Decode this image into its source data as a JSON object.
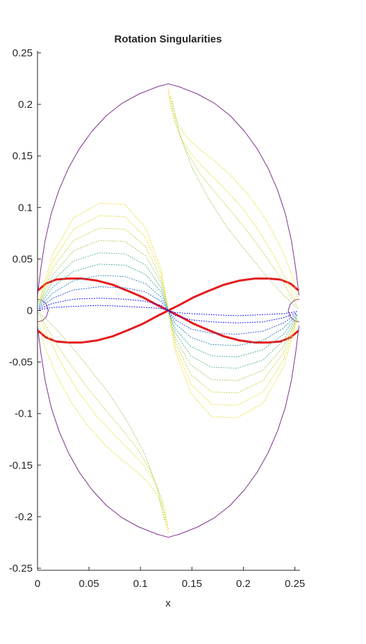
{
  "chart_data": {
    "type": "line",
    "title": "Rotation Singularities",
    "xlabel": "x",
    "ylabel": "",
    "xlim": [
      0,
      0.255
    ],
    "ylim": [
      -0.252,
      0.252
    ],
    "xticks": [
      0,
      0.05,
      0.1,
      0.15,
      0.2,
      0.25
    ],
    "xtick_labels": [
      "0",
      "0.05",
      "0.1",
      "0.15",
      "0.2",
      "0.25"
    ],
    "yticks": [
      -0.25,
      -0.2,
      -0.15,
      -0.1,
      -0.05,
      0,
      0.05,
      0.1,
      0.15,
      0.2,
      0.25
    ],
    "ytick_labels": [
      "-0.25",
      "-0.2",
      "-0.15",
      "-0.1",
      "-0.05",
      "0",
      "0.05",
      "0.1",
      "0.15",
      "0.2",
      "0.25"
    ],
    "grid": false,
    "colors": {
      "boundary": "#7e2f8e",
      "singularity": "#e41a1c",
      "contour_low": "#0000ff",
      "contour_mid": "#3aa8a0",
      "contour_high": "#e8dc28"
    },
    "series": [
      {
        "style": "solid",
        "color": "#7e2f8e",
        "x": [
          0,
          0.0031,
          0.0074,
          0.0133,
          0.0209,
          0.03,
          0.0407,
          0.053,
          0.0668,
          0.082,
          0.0985,
          0.1162,
          0.127,
          0.1378,
          0.1555,
          0.172,
          0.1872,
          0.201,
          0.2133,
          0.224,
          0.2331,
          0.2407,
          0.2466,
          0.2509,
          0.254
        ],
        "y": [
          0.015,
          0.04,
          0.068,
          0.094,
          0.117,
          0.138,
          0.157,
          0.174,
          0.189,
          0.201,
          0.21,
          0.217,
          0.22,
          0.217,
          0.21,
          0.201,
          0.189,
          0.174,
          0.157,
          0.138,
          0.117,
          0.094,
          0.068,
          0.04,
          0.015
        ]
      },
      {
        "style": "solid",
        "color": "#7e2f8e",
        "x": [
          0,
          0.0031,
          0.0074,
          0.0133,
          0.0209,
          0.03,
          0.0407,
          0.053,
          0.0668,
          0.082,
          0.0985,
          0.1162,
          0.127,
          0.1378,
          0.1555,
          0.172,
          0.1872,
          0.201,
          0.2133,
          0.224,
          0.2331,
          0.2407,
          0.2466,
          0.2509,
          0.254
        ],
        "y": [
          -0.015,
          -0.04,
          -0.068,
          -0.094,
          -0.117,
          -0.138,
          -0.157,
          -0.174,
          -0.189,
          -0.201,
          -0.21,
          -0.217,
          -0.22,
          -0.217,
          -0.21,
          -0.201,
          -0.189,
          -0.174,
          -0.157,
          -0.138,
          -0.117,
          -0.094,
          -0.068,
          -0.04,
          -0.015
        ]
      },
      {
        "style": "solid",
        "color": "#7e2f8e",
        "x": [
          0,
          0.0045,
          0.0085,
          0.0105,
          0.0085,
          0.0045,
          0
        ],
        "y": [
          0.011,
          0.01,
          0.0062,
          0,
          -0.0062,
          -0.01,
          -0.011
        ]
      },
      {
        "style": "solid",
        "color": "#7e2f8e",
        "x": [
          0.254,
          0.2495,
          0.2455,
          0.2435,
          0.2455,
          0.2495,
          0.254
        ],
        "y": [
          0.011,
          0.01,
          0.0062,
          0,
          -0.0062,
          -0.01,
          -0.011
        ]
      },
      {
        "style": "thick",
        "color": "#e41a1c",
        "x": [
          0.001,
          0.008,
          0.018,
          0.03,
          0.043,
          0.058,
          0.073,
          0.088,
          0.102,
          0.115,
          0.127,
          0.139,
          0.152,
          0.166,
          0.181,
          0.196,
          0.211,
          0.224,
          0.236,
          0.246,
          0.253
        ],
        "y": [
          0.02,
          0.026,
          0.03,
          0.031,
          0.031,
          0.029,
          0.025,
          0.019,
          0.013,
          0.006,
          0,
          -0.006,
          -0.013,
          -0.019,
          -0.025,
          -0.029,
          -0.031,
          -0.031,
          -0.03,
          -0.026,
          -0.02
        ]
      },
      {
        "style": "thick",
        "color": "#e41a1c",
        "x": [
          0.001,
          0.008,
          0.018,
          0.03,
          0.043,
          0.058,
          0.073,
          0.088,
          0.102,
          0.115,
          0.127,
          0.139,
          0.152,
          0.166,
          0.181,
          0.196,
          0.211,
          0.224,
          0.236,
          0.246,
          0.253
        ],
        "y": [
          -0.02,
          -0.026,
          -0.03,
          -0.031,
          -0.031,
          -0.029,
          -0.025,
          -0.019,
          -0.013,
          -0.006,
          0,
          0.006,
          0.013,
          0.019,
          0.025,
          0.029,
          0.031,
          0.031,
          0.03,
          0.026,
          0.02
        ]
      },
      {
        "style": "dotted",
        "color": "#e8dc28",
        "x": [
          0.002,
          0.015,
          0.035,
          0.06,
          0.085,
          0.105,
          0.12,
          0.127,
          0.134,
          0.149,
          0.169,
          0.194,
          0.219,
          0.239,
          0.252
        ],
        "y": [
          0.01,
          0.055,
          0.09,
          0.104,
          0.103,
          0.08,
          0.04,
          0,
          -0.04,
          -0.08,
          -0.103,
          -0.104,
          -0.09,
          -0.055,
          -0.01
        ]
      },
      {
        "style": "dotted",
        "color": "#e8dc28",
        "x": [
          0.002,
          0.015,
          0.035,
          0.06,
          0.085,
          0.105,
          0.12,
          0.127,
          0.134,
          0.149,
          0.169,
          0.194,
          0.219,
          0.239,
          0.252
        ],
        "y": [
          0.009,
          0.048,
          0.079,
          0.092,
          0.091,
          0.071,
          0.036,
          0,
          -0.036,
          -0.071,
          -0.091,
          -0.092,
          -0.079,
          -0.048,
          -0.009
        ]
      },
      {
        "style": "dotted",
        "color": "#c8d040",
        "x": [
          0.002,
          0.015,
          0.035,
          0.06,
          0.085,
          0.105,
          0.12,
          0.127,
          0.134,
          0.149,
          0.169,
          0.194,
          0.219,
          0.239,
          0.252
        ],
        "y": [
          0.008,
          0.041,
          0.068,
          0.08,
          0.079,
          0.062,
          0.031,
          0,
          -0.031,
          -0.062,
          -0.079,
          -0.08,
          -0.068,
          -0.041,
          -0.008
        ]
      },
      {
        "style": "dotted",
        "color": "#a0c860",
        "x": [
          0.002,
          0.015,
          0.035,
          0.06,
          0.085,
          0.105,
          0.12,
          0.127,
          0.134,
          0.149,
          0.169,
          0.194,
          0.219,
          0.239,
          0.252
        ],
        "y": [
          0.007,
          0.035,
          0.058,
          0.068,
          0.067,
          0.053,
          0.027,
          0,
          -0.027,
          -0.053,
          -0.067,
          -0.068,
          -0.058,
          -0.035,
          -0.007
        ]
      },
      {
        "style": "dotted",
        "color": "#60b488",
        "x": [
          0.002,
          0.015,
          0.035,
          0.06,
          0.085,
          0.105,
          0.12,
          0.127,
          0.134,
          0.149,
          0.169,
          0.194,
          0.219,
          0.239,
          0.252
        ],
        "y": [
          0.006,
          0.029,
          0.048,
          0.056,
          0.055,
          0.044,
          0.022,
          0,
          -0.022,
          -0.044,
          -0.055,
          -0.056,
          -0.048,
          -0.029,
          -0.006
        ]
      },
      {
        "style": "dotted",
        "color": "#3aa8a0",
        "x": [
          0.002,
          0.015,
          0.035,
          0.06,
          0.085,
          0.105,
          0.12,
          0.127,
          0.134,
          0.149,
          0.169,
          0.194,
          0.219,
          0.239,
          0.252
        ],
        "y": [
          0.005,
          0.023,
          0.038,
          0.045,
          0.044,
          0.035,
          0.018,
          0,
          -0.018,
          -0.035,
          -0.044,
          -0.045,
          -0.038,
          -0.023,
          -0.005
        ]
      },
      {
        "style": "dotted",
        "color": "#2a80b8",
        "x": [
          0.002,
          0.015,
          0.035,
          0.06,
          0.085,
          0.105,
          0.12,
          0.127,
          0.134,
          0.149,
          0.169,
          0.194,
          0.219,
          0.239,
          0.252
        ],
        "y": [
          0.004,
          0.017,
          0.029,
          0.034,
          0.033,
          0.026,
          0.013,
          0,
          -0.013,
          -0.026,
          -0.033,
          -0.034,
          -0.029,
          -0.017,
          -0.004
        ]
      },
      {
        "style": "dotted",
        "color": "#1f50d0",
        "x": [
          0.002,
          0.015,
          0.035,
          0.06,
          0.085,
          0.105,
          0.12,
          0.127,
          0.134,
          0.149,
          0.169,
          0.194,
          0.219,
          0.239,
          0.252
        ],
        "y": [
          0.003,
          0.012,
          0.02,
          0.023,
          0.022,
          0.018,
          0.009,
          0,
          -0.009,
          -0.018,
          -0.022,
          -0.023,
          -0.02,
          -0.012,
          -0.003
        ]
      },
      {
        "style": "dotted",
        "color": "#0000ff",
        "x": [
          0.002,
          0.015,
          0.035,
          0.06,
          0.085,
          0.105,
          0.12,
          0.127,
          0.134,
          0.149,
          0.169,
          0.194,
          0.219,
          0.239,
          0.252
        ],
        "y": [
          0.002,
          0.007,
          0.011,
          0.012,
          0.011,
          0.009,
          0.005,
          0,
          -0.005,
          -0.009,
          -0.011,
          -0.012,
          -0.011,
          -0.007,
          -0.002
        ]
      },
      {
        "style": "dotted",
        "color": "#0000ff",
        "x": [
          0.002,
          0.015,
          0.035,
          0.06,
          0.085,
          0.105,
          0.12,
          0.127,
          0.134,
          0.149,
          0.169,
          0.194,
          0.219,
          0.239,
          0.252
        ],
        "y": [
          0.001,
          0.003,
          0.004,
          0.005,
          0.004,
          0.003,
          0.002,
          0,
          -0.002,
          -0.003,
          -0.004,
          -0.005,
          -0.004,
          -0.003,
          -0.001
        ]
      },
      {
        "style": "dotted",
        "color": "#e8dc28",
        "x": [
          0.127,
          0.13,
          0.137,
          0.146,
          0.158,
          0.172,
          0.188,
          0.205,
          0.222,
          0.237,
          0.248,
          0.253
        ],
        "y": [
          0.215,
          0.198,
          0.18,
          0.167,
          0.156,
          0.145,
          0.131,
          0.112,
          0.088,
          0.06,
          0.032,
          0.01
        ]
      },
      {
        "style": "dotted",
        "color": "#e8dc28",
        "x": [
          0.127,
          0.131,
          0.139,
          0.15,
          0.164,
          0.18,
          0.197,
          0.214,
          0.23,
          0.243,
          0.251
        ],
        "y": [
          0.212,
          0.19,
          0.168,
          0.151,
          0.136,
          0.12,
          0.102,
          0.079,
          0.053,
          0.027,
          0.008
        ]
      },
      {
        "style": "dotted",
        "color": "#c8d040",
        "x": [
          0.129,
          0.134,
          0.144,
          0.157,
          0.173,
          0.19,
          0.207,
          0.223,
          0.237,
          0.247,
          0.252
        ],
        "y": [
          0.208,
          0.182,
          0.156,
          0.134,
          0.114,
          0.094,
          0.073,
          0.051,
          0.03,
          0.013,
          0.004
        ]
      },
      {
        "style": "dotted",
        "color": "#a0c860",
        "x": [
          0.131,
          0.138,
          0.15,
          0.166,
          0.184,
          0.203,
          0.221,
          0.236,
          0.247,
          0.253
        ],
        "y": [
          0.203,
          0.171,
          0.139,
          0.109,
          0.081,
          0.057,
          0.035,
          0.018,
          0.007,
          0.002
        ]
      },
      {
        "style": "dotted",
        "color": "#e8dc28",
        "x": [
          0.127,
          0.124,
          0.117,
          0.108,
          0.096,
          0.082,
          0.066,
          0.049,
          0.032,
          0.017,
          0.006,
          0.001
        ],
        "y": [
          -0.215,
          -0.198,
          -0.18,
          -0.167,
          -0.156,
          -0.145,
          -0.131,
          -0.112,
          -0.088,
          -0.06,
          -0.032,
          -0.01
        ]
      },
      {
        "style": "dotted",
        "color": "#e8dc28",
        "x": [
          0.127,
          0.123,
          0.115,
          0.104,
          0.09,
          0.074,
          0.057,
          0.04,
          0.024,
          0.011,
          0.003
        ],
        "y": [
          -0.212,
          -0.19,
          -0.168,
          -0.151,
          -0.136,
          -0.12,
          -0.102,
          -0.079,
          -0.053,
          -0.027,
          -0.008
        ]
      },
      {
        "style": "dotted",
        "color": "#c8d040",
        "x": [
          0.125,
          0.12,
          0.11,
          0.097,
          0.081,
          0.064,
          0.047,
          0.031,
          0.017,
          0.007,
          0.002
        ],
        "y": [
          -0.208,
          -0.182,
          -0.156,
          -0.134,
          -0.114,
          -0.094,
          -0.073,
          -0.051,
          -0.03,
          -0.013,
          -0.004
        ]
      },
      {
        "style": "dotted",
        "color": "#a0c860",
        "x": [
          0.123,
          0.116,
          0.104,
          0.088,
          0.07,
          0.051,
          0.033,
          0.018,
          0.007,
          0.001
        ],
        "y": [
          -0.203,
          -0.171,
          -0.139,
          -0.109,
          -0.081,
          -0.057,
          -0.035,
          -0.018,
          -0.007,
          -0.002
        ]
      }
    ]
  }
}
